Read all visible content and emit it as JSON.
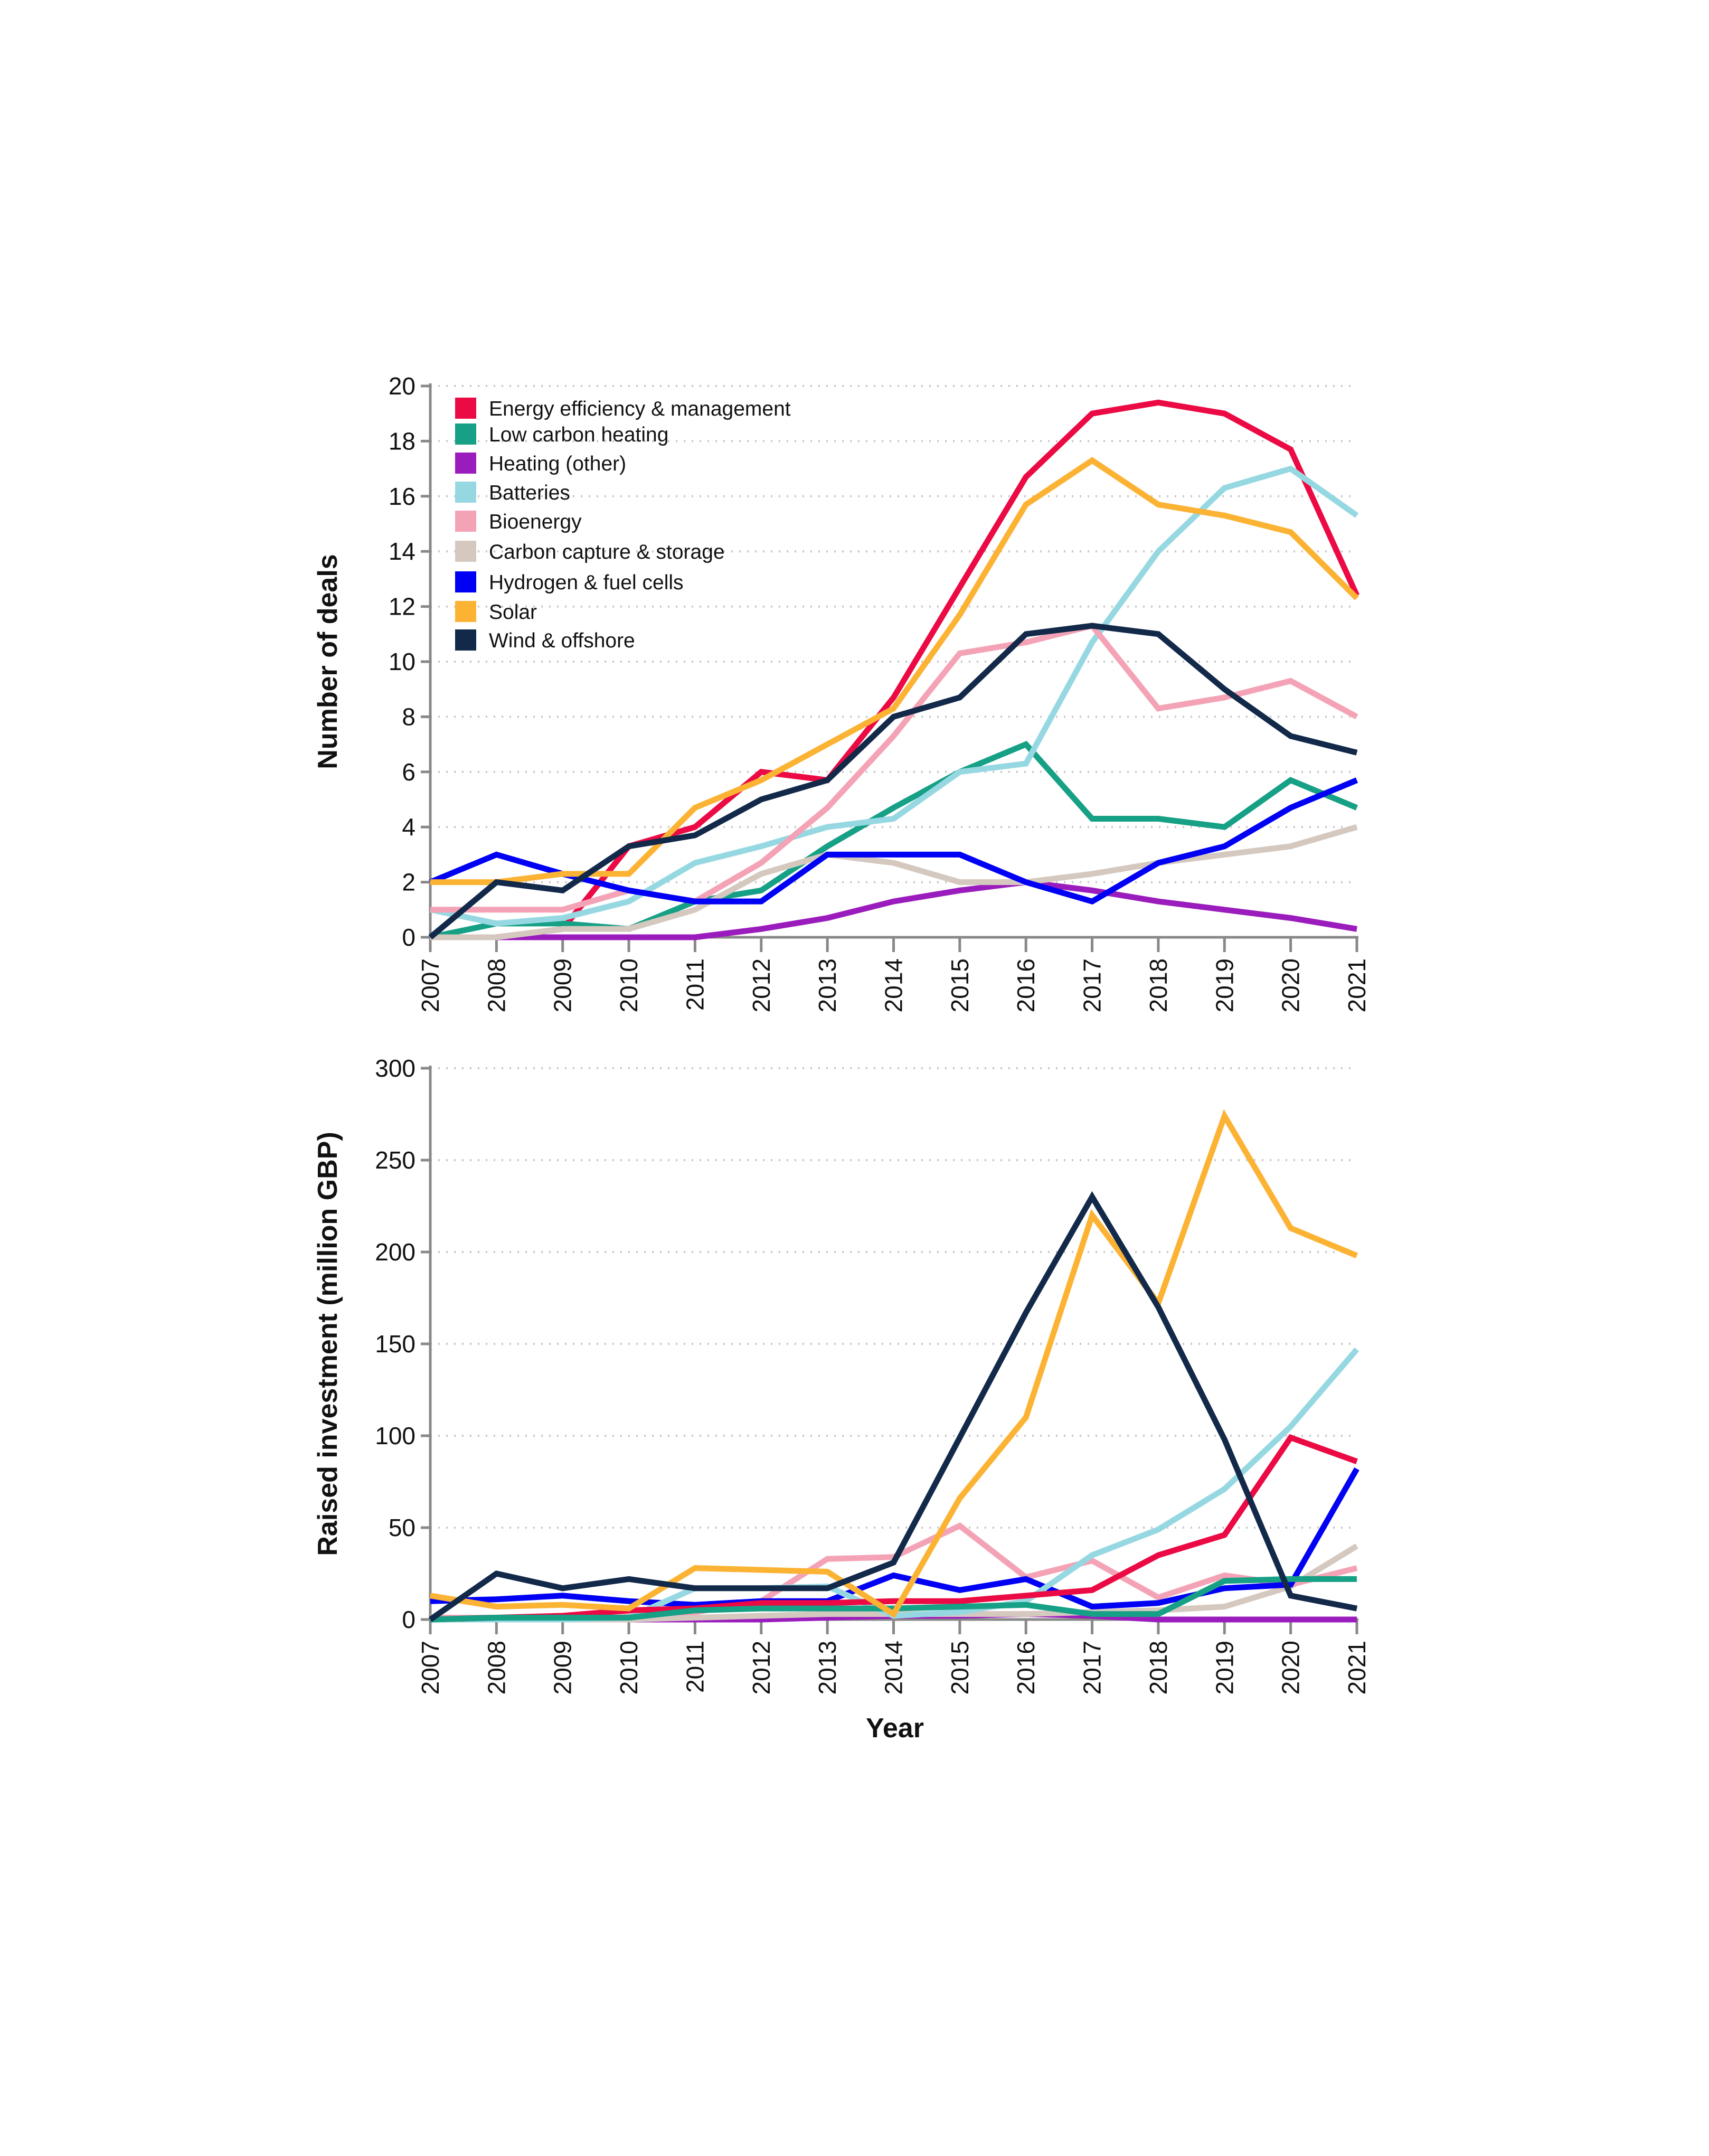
{
  "chart_data": [
    {
      "type": "line",
      "title": "",
      "xlabel": "",
      "ylabel": "Number of deals",
      "ylim": [
        0,
        20
      ],
      "yticks": [
        "0",
        "2",
        "4",
        "6",
        "8",
        "10",
        "12",
        "14",
        "16",
        "18",
        "20"
      ],
      "grid": true,
      "legend_position": "top-left",
      "x": [
        "2007",
        "2008",
        "2009",
        "2010",
        "2011",
        "2012",
        "2013",
        "2014",
        "2015",
        "2016",
        "2017",
        "2018",
        "2019",
        "2020",
        "2021"
      ],
      "series": [
        {
          "name": "Energy efficiency & management",
          "color": "#eb0a44",
          "values": [
            0,
            0,
            0.3,
            3.3,
            4,
            6,
            5.7,
            8.7,
            12.7,
            16.7,
            19,
            19.4,
            19,
            17.7,
            12.4
          ]
        },
        {
          "name": "Low carbon heating",
          "color": "#16a085",
          "values": [
            0,
            0.5,
            0.5,
            0.3,
            1.3,
            1.7,
            3.3,
            4.7,
            6,
            7,
            4.3,
            4.3,
            4,
            5.7,
            4.7
          ]
        },
        {
          "name": "Heating (other)",
          "color": "#9b1cbd",
          "values": [
            0,
            0,
            0,
            0,
            0,
            0.3,
            0.7,
            1.3,
            1.7,
            2,
            1.7,
            1.3,
            1,
            0.7,
            0.3
          ]
        },
        {
          "name": "Batteries",
          "color": "#96d8e2",
          "values": [
            1,
            0.5,
            0.7,
            1.3,
            2.7,
            3.3,
            4,
            4.3,
            6,
            6.3,
            10.7,
            14,
            16.3,
            17,
            15.3
          ]
        },
        {
          "name": "Bioenergy",
          "color": "#f4a3b6",
          "values": [
            1,
            1,
            1,
            1.7,
            1.3,
            2.7,
            4.7,
            7.3,
            10.3,
            10.7,
            11.3,
            8.3,
            8.7,
            9.3,
            8
          ]
        },
        {
          "name": "Carbon capture & storage",
          "color": "#d4c8bf",
          "values": [
            0,
            0,
            0.3,
            0.3,
            1,
            2.3,
            3,
            2.7,
            2,
            2,
            2.3,
            2.7,
            3,
            3.3,
            4
          ]
        },
        {
          "name": "Hydrogen & fuel cells",
          "color": "#0000f5",
          "values": [
            2,
            3,
            2.3,
            1.7,
            1.3,
            1.3,
            3,
            3,
            3,
            2,
            1.3,
            2.7,
            3.3,
            4.7,
            5.7
          ]
        },
        {
          "name": "Solar",
          "color": "#fcb334",
          "values": [
            2,
            2,
            2.3,
            2.3,
            4.7,
            5.7,
            7,
            8.3,
            11.7,
            15.7,
            17.3,
            15.7,
            15.3,
            14.7,
            12.3
          ]
        },
        {
          "name": "Wind & offshore",
          "color": "#12294a",
          "values": [
            0,
            2,
            1.7,
            3.3,
            3.7,
            5,
            5.7,
            8,
            8.7,
            11,
            11.3,
            11,
            9,
            7.3,
            6.7
          ]
        }
      ]
    },
    {
      "type": "line",
      "title": "",
      "xlabel": "Year",
      "ylabel": "Raised investment (million GBP)",
      "ylim": [
        0,
        300
      ],
      "yticks": [
        "0",
        "50",
        "100",
        "150",
        "200",
        "250",
        "300"
      ],
      "grid": true,
      "x": [
        "2007",
        "2008",
        "2009",
        "2010",
        "2011",
        "2012",
        "2013",
        "2014",
        "2015",
        "2016",
        "2017",
        "2018",
        "2019",
        "2020",
        "2021"
      ],
      "series": [
        {
          "name": "Heating (other)",
          "color": "#9b1cbd",
          "values": [
            0,
            0,
            0,
            0,
            0,
            0,
            1,
            2,
            2,
            3,
            2,
            0,
            0,
            0,
            0
          ]
        },
        {
          "name": "Carbon capture & storage",
          "color": "#d4c8bf",
          "values": [
            0,
            0,
            0,
            0,
            1,
            2,
            3,
            3,
            3,
            3,
            4,
            5,
            7,
            18,
            40
          ]
        },
        {
          "name": "Bioenergy",
          "color": "#f4a3b6",
          "values": [
            1,
            1,
            1,
            3,
            4,
            10,
            33,
            34,
            51,
            23,
            32,
            12,
            24,
            19,
            28
          ]
        },
        {
          "name": "Hydrogen & fuel cells",
          "color": "#0000f5",
          "values": [
            10,
            11,
            13,
            10,
            8,
            10,
            10,
            24,
            16,
            22,
            7,
            9,
            17,
            19,
            82
          ]
        },
        {
          "name": "Batteries",
          "color": "#96d8e2",
          "values": [
            0,
            0,
            0,
            1,
            17,
            17,
            18,
            2,
            4,
            10,
            35,
            49,
            71,
            105,
            147
          ]
        },
        {
          "name": "Energy efficiency & management",
          "color": "#eb0a44",
          "values": [
            0,
            1,
            2,
            5,
            6,
            9,
            9,
            10,
            10,
            13,
            16,
            35,
            46,
            99,
            86
          ]
        },
        {
          "name": "Low carbon heating",
          "color": "#16a085",
          "values": [
            0,
            1,
            1,
            1,
            5,
            6,
            6,
            6,
            7,
            8,
            3,
            3,
            21,
            22,
            22
          ]
        },
        {
          "name": "Solar",
          "color": "#fcb334",
          "values": [
            13,
            7,
            8,
            6,
            28,
            27,
            26,
            3,
            66,
            110,
            220,
            172,
            274,
            213,
            198
          ]
        },
        {
          "name": "Wind & offshore",
          "color": "#12294a",
          "values": [
            0,
            25,
            17,
            22,
            17,
            17,
            17,
            31,
            99,
            167,
            230,
            170,
            98,
            13,
            6
          ]
        }
      ]
    }
  ]
}
